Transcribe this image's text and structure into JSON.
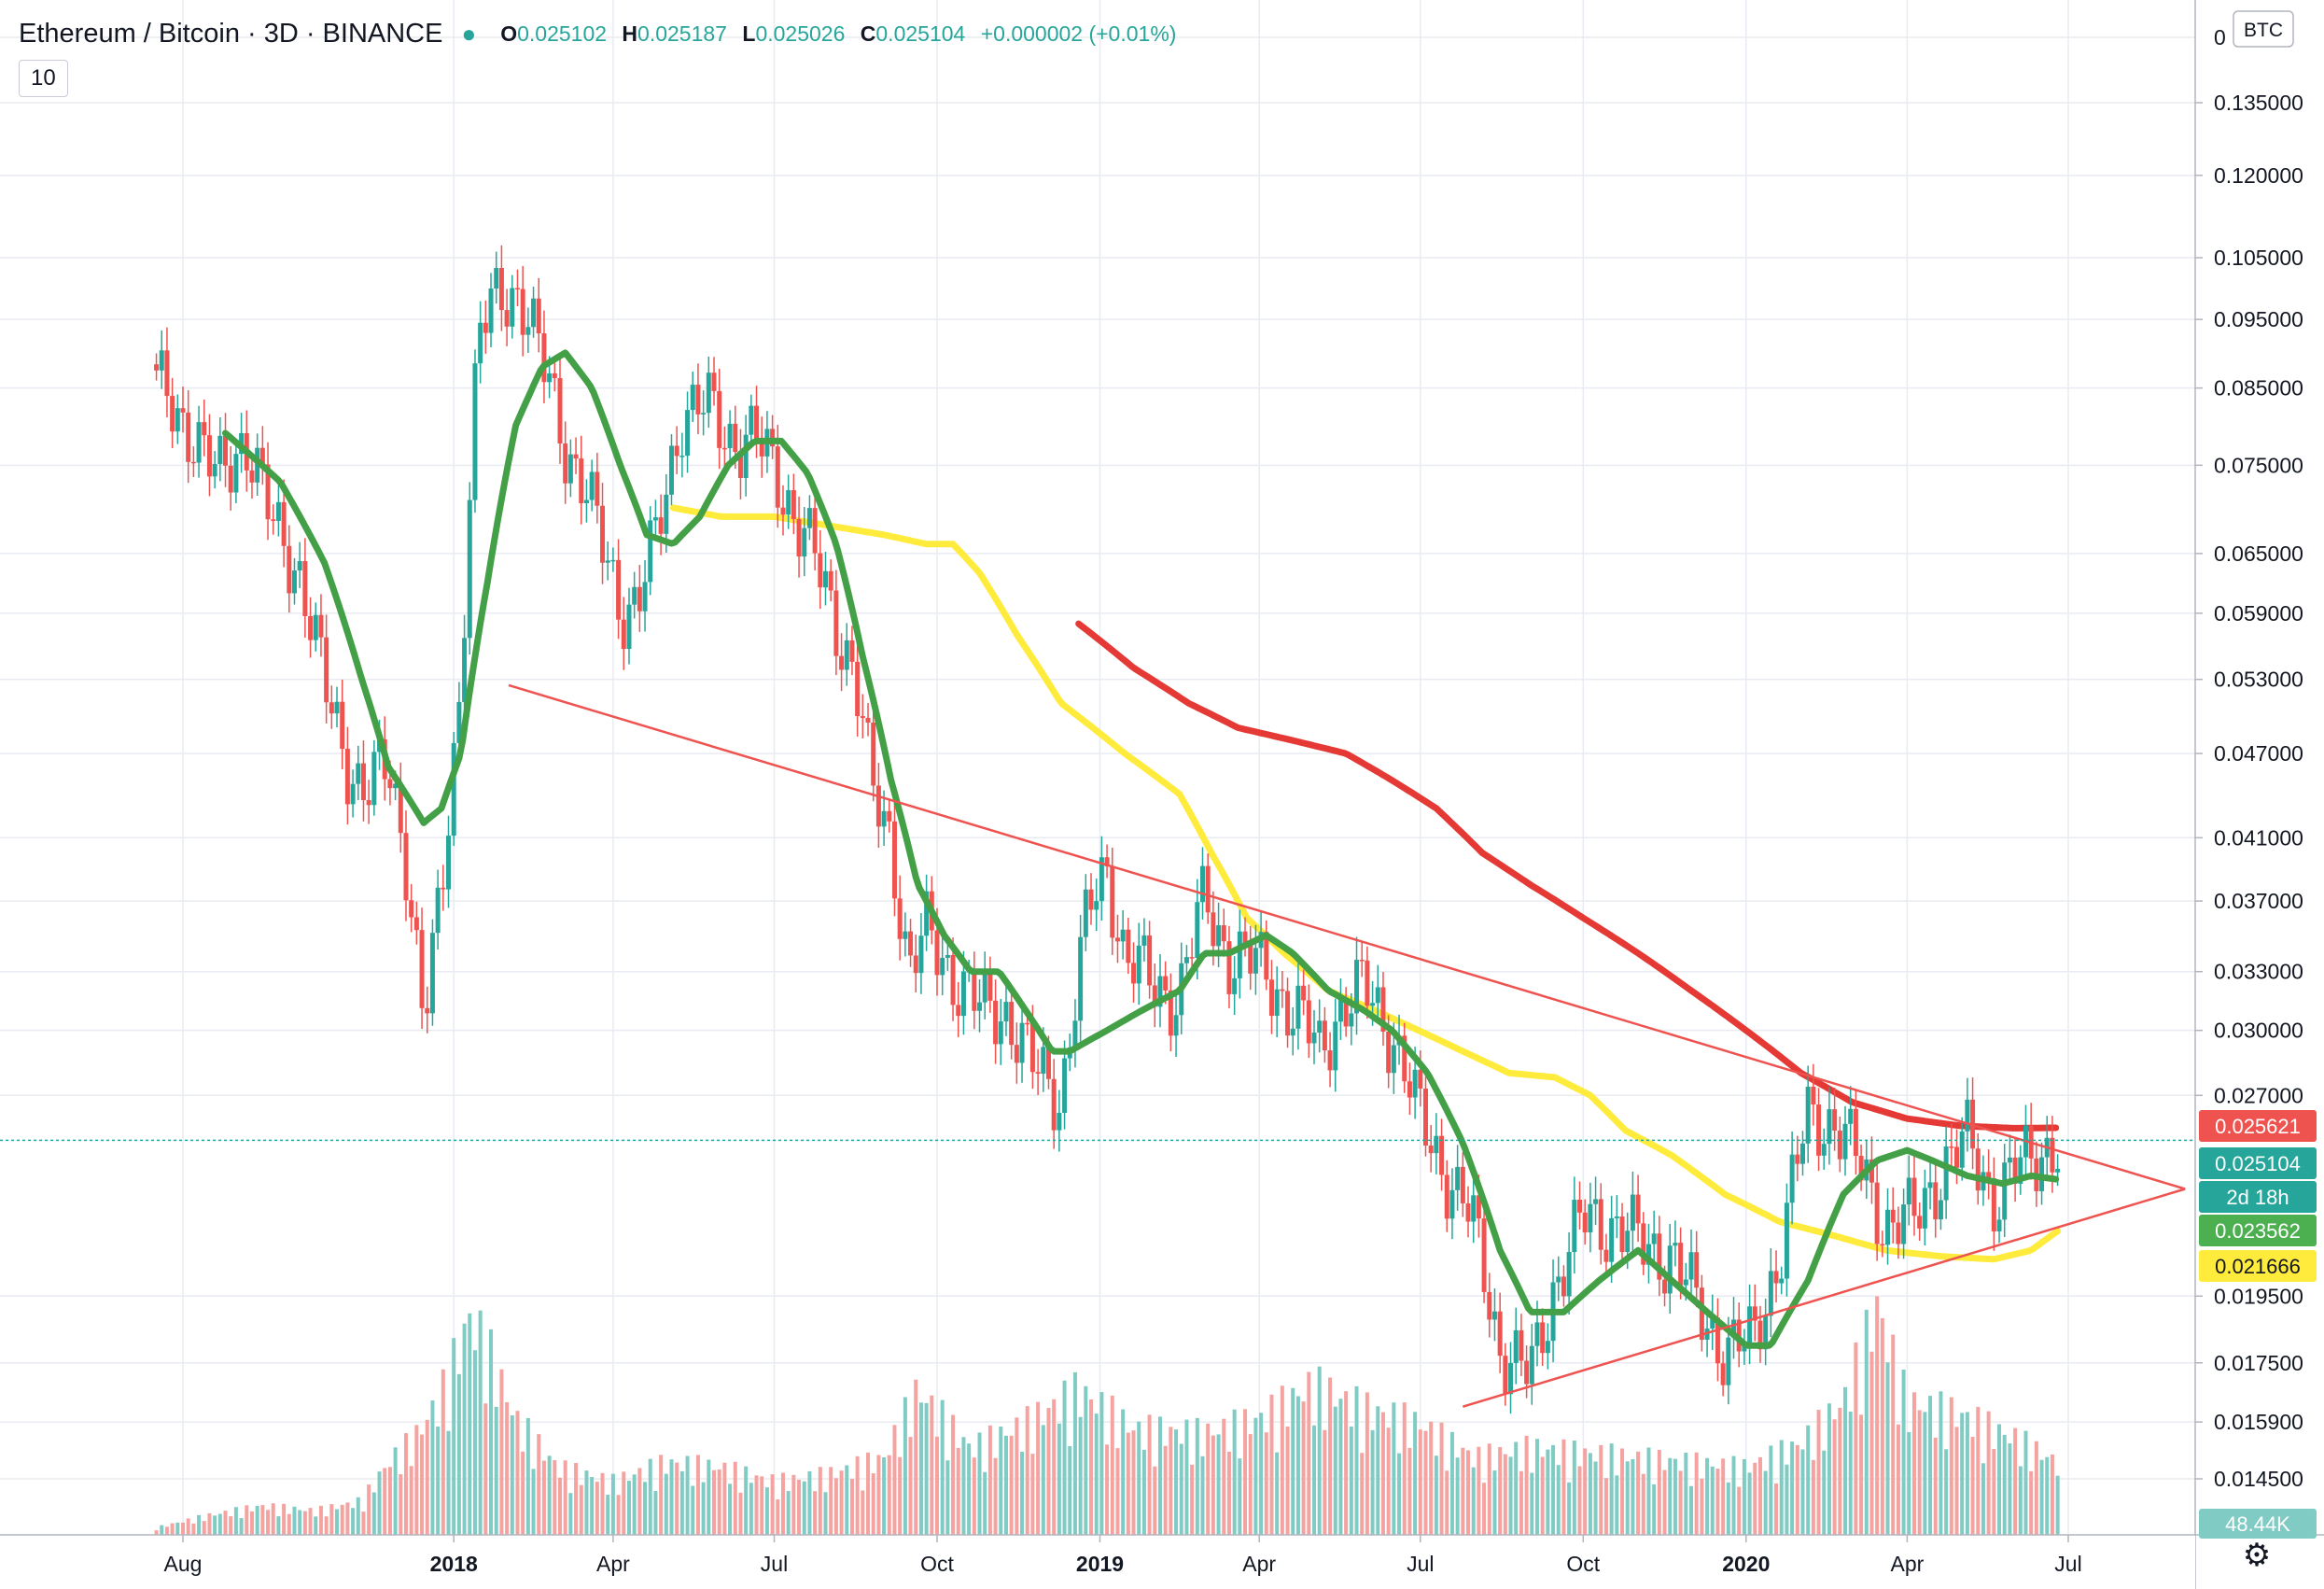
{
  "header": {
    "title": "Ethereum / Bitcoin · 3D · BINANCE",
    "open_label": "O",
    "open": "0.025102",
    "high_label": "H",
    "high": "0.025187",
    "low_label": "L",
    "low": "0.025026",
    "close_label": "C",
    "close": "0.025104",
    "change": "+0.000002 (+0.01%)",
    "status_icon": "live-dot-icon",
    "up_color": "#26a69a"
  },
  "ma_length": "10",
  "settings_icon": "gear-icon",
  "chart_data": {
    "type": "candlestick",
    "scale": "log",
    "quote_currency": "BTC",
    "y_ticks": [
      "0.135000",
      "0.120000",
      "0.105000",
      "0.095000",
      "0.085000",
      "0.075000",
      "0.065000",
      "0.059000",
      "0.053000",
      "0.047000",
      "0.041000",
      "0.037000",
      "0.033000",
      "0.030000",
      "0.027000",
      "0.019500",
      "0.017500",
      "0.015900",
      "0.014500"
    ],
    "top_tick_fragment": "0",
    "x_ticks": [
      {
        "label": "Aug",
        "date": "2017-08-01"
      },
      {
        "label": "2018",
        "date": "2018-01-01",
        "bold": true
      },
      {
        "label": "Apr",
        "date": "2018-04-01"
      },
      {
        "label": "Jul",
        "date": "2018-07-01"
      },
      {
        "label": "Oct",
        "date": "2018-10-01"
      },
      {
        "label": "2019",
        "date": "2019-01-01",
        "bold": true
      },
      {
        "label": "Apr",
        "date": "2019-04-01"
      },
      {
        "label": "Jul",
        "date": "2019-07-01"
      },
      {
        "label": "Oct",
        "date": "2019-10-01"
      },
      {
        "label": "2020",
        "date": "2020-01-01",
        "bold": true
      },
      {
        "label": "Apr",
        "date": "2020-04-01"
      },
      {
        "label": "Jul",
        "date": "2020-07-01"
      }
    ],
    "price_path": [
      [
        "2017-07-17",
        0.085
      ],
      [
        "2017-08-05",
        0.08
      ],
      [
        "2017-08-20",
        0.073
      ],
      [
        "2017-09-05",
        0.079
      ],
      [
        "2017-09-20",
        0.068
      ],
      [
        "2017-10-05",
        0.064
      ],
      [
        "2017-10-20",
        0.052
      ],
      [
        "2017-11-01",
        0.047
      ],
      [
        "2017-11-12",
        0.044
      ],
      [
        "2017-11-25",
        0.046
      ],
      [
        "2017-12-05",
        0.04
      ],
      [
        "2017-12-15",
        0.03
      ],
      [
        "2017-12-25",
        0.037
      ],
      [
        "2018-01-05",
        0.053
      ],
      [
        "2018-01-15",
        0.092
      ],
      [
        "2018-01-27",
        0.099
      ],
      [
        "2018-02-07",
        0.1
      ],
      [
        "2018-02-20",
        0.088
      ],
      [
        "2018-03-05",
        0.078
      ],
      [
        "2018-03-15",
        0.073
      ],
      [
        "2018-03-25",
        0.066
      ],
      [
        "2018-04-05",
        0.06
      ],
      [
        "2018-04-15",
        0.06
      ],
      [
        "2018-04-25",
        0.066
      ],
      [
        "2018-05-10",
        0.082
      ],
      [
        "2018-05-25",
        0.082
      ],
      [
        "2018-06-05",
        0.079
      ],
      [
        "2018-06-20",
        0.078
      ],
      [
        "2018-07-05",
        0.073
      ],
      [
        "2018-07-20",
        0.066
      ],
      [
        "2018-08-01",
        0.06
      ],
      [
        "2018-08-15",
        0.054
      ],
      [
        "2018-08-25",
        0.044
      ],
      [
        "2018-09-05",
        0.041
      ],
      [
        "2018-09-15",
        0.033
      ],
      [
        "2018-09-25",
        0.035
      ],
      [
        "2018-10-10",
        0.033
      ],
      [
        "2018-10-25",
        0.031
      ],
      [
        "2018-11-10",
        0.031
      ],
      [
        "2018-11-25",
        0.028
      ],
      [
        "2018-12-10",
        0.027
      ],
      [
        "2018-12-25",
        0.036
      ],
      [
        "2019-01-05",
        0.039
      ],
      [
        "2019-01-15",
        0.034
      ],
      [
        "2019-02-01",
        0.032
      ],
      [
        "2019-02-15",
        0.032
      ],
      [
        "2019-03-01",
        0.037
      ],
      [
        "2019-03-15",
        0.034
      ],
      [
        "2019-04-05",
        0.033
      ],
      [
        "2019-04-20",
        0.031
      ],
      [
        "2019-05-05",
        0.029
      ],
      [
        "2019-05-15",
        0.031
      ],
      [
        "2019-05-30",
        0.032
      ],
      [
        "2019-06-15",
        0.03
      ],
      [
        "2019-06-30",
        0.026
      ],
      [
        "2019-07-15",
        0.024
      ],
      [
        "2019-07-30",
        0.022
      ],
      [
        "2019-08-15",
        0.018
      ],
      [
        "2019-09-01",
        0.017
      ],
      [
        "2019-09-15",
        0.02
      ],
      [
        "2019-10-01",
        0.022
      ],
      [
        "2019-10-20",
        0.022
      ],
      [
        "2019-11-05",
        0.021
      ],
      [
        "2019-11-20",
        0.021
      ],
      [
        "2019-12-05",
        0.019
      ],
      [
        "2019-12-20",
        0.018
      ],
      [
        "2020-01-05",
        0.018
      ],
      [
        "2020-01-20",
        0.021
      ],
      [
        "2020-02-05",
        0.026
      ],
      [
        "2020-02-20",
        0.026
      ],
      [
        "2020-03-05",
        0.024
      ],
      [
        "2020-03-20",
        0.022
      ],
      [
        "2020-04-05",
        0.022
      ],
      [
        "2020-04-20",
        0.024
      ],
      [
        "2020-05-05",
        0.025
      ],
      [
        "2020-05-20",
        0.023
      ],
      [
        "2020-06-05",
        0.024
      ],
      [
        "2020-06-20",
        0.025
      ]
    ],
    "volume_path": [
      [
        "2017-07-17",
        3
      ],
      [
        "2017-08-15",
        8
      ],
      [
        "2017-09-15",
        12
      ],
      [
        "2017-10-15",
        10
      ],
      [
        "2017-11-10",
        14
      ],
      [
        "2017-11-25",
        30
      ],
      [
        "2017-12-10",
        40
      ],
      [
        "2017-12-25",
        58
      ],
      [
        "2018-01-10",
        90
      ],
      [
        "2018-01-20",
        78
      ],
      [
        "2018-02-05",
        48
      ],
      [
        "2018-03-01",
        28
      ],
      [
        "2018-04-01",
        22
      ],
      [
        "2018-05-01",
        30
      ],
      [
        "2018-06-01",
        28
      ],
      [
        "2018-07-01",
        22
      ],
      [
        "2018-08-01",
        25
      ],
      [
        "2018-09-01",
        32
      ],
      [
        "2018-09-20",
        60
      ],
      [
        "2018-10-20",
        36
      ],
      [
        "2018-11-20",
        46
      ],
      [
        "2018-12-20",
        60
      ],
      [
        "2019-01-20",
        44
      ],
      [
        "2019-03-01",
        42
      ],
      [
        "2019-04-01",
        48
      ],
      [
        "2019-05-01",
        62
      ],
      [
        "2019-06-01",
        52
      ],
      [
        "2019-07-01",
        46
      ],
      [
        "2019-08-01",
        32
      ],
      [
        "2019-09-01",
        36
      ],
      [
        "2019-10-01",
        34
      ],
      [
        "2019-11-01",
        32
      ],
      [
        "2019-12-01",
        30
      ],
      [
        "2020-01-01",
        28
      ],
      [
        "2020-02-01",
        38
      ],
      [
        "2020-02-25",
        55
      ],
      [
        "2020-03-15",
        95
      ],
      [
        "2020-04-01",
        55
      ],
      [
        "2020-05-01",
        50
      ],
      [
        "2020-06-01",
        40
      ],
      [
        "2020-06-25",
        30
      ]
    ],
    "ma_fast_path": [
      [
        "2017-08-25",
        0.079
      ],
      [
        "2017-09-25",
        0.073
      ],
      [
        "2017-10-20",
        0.064
      ],
      [
        "2017-11-10",
        0.053
      ],
      [
        "2017-11-25",
        0.046
      ],
      [
        "2017-12-15",
        0.042
      ],
      [
        "2017-12-25",
        0.043
      ],
      [
        "2018-01-05",
        0.047
      ],
      [
        "2018-01-20",
        0.062
      ],
      [
        "2018-02-05",
        0.08
      ],
      [
        "2018-02-20",
        0.088
      ],
      [
        "2018-03-05",
        0.09
      ],
      [
        "2018-03-20",
        0.085
      ],
      [
        "2018-04-05",
        0.075
      ],
      [
        "2018-04-20",
        0.067
      ],
      [
        "2018-05-05",
        0.066
      ],
      [
        "2018-05-20",
        0.069
      ],
      [
        "2018-06-05",
        0.075
      ],
      [
        "2018-06-20",
        0.078
      ],
      [
        "2018-07-05",
        0.078
      ],
      [
        "2018-07-20",
        0.074
      ],
      [
        "2018-08-05",
        0.066
      ],
      [
        "2018-08-20",
        0.055
      ],
      [
        "2018-09-05",
        0.045
      ],
      [
        "2018-09-20",
        0.038
      ],
      [
        "2018-10-05",
        0.035
      ],
      [
        "2018-10-20",
        0.033
      ],
      [
        "2018-11-05",
        0.033
      ],
      [
        "2018-11-20",
        0.031
      ],
      [
        "2018-12-05",
        0.029
      ],
      [
        "2018-12-15",
        0.029
      ],
      [
        "2019-01-05",
        0.03
      ],
      [
        "2019-01-25",
        0.031
      ],
      [
        "2019-02-15",
        0.032
      ],
      [
        "2019-03-01",
        0.034
      ],
      [
        "2019-03-15",
        0.034
      ],
      [
        "2019-04-05",
        0.035
      ],
      [
        "2019-04-20",
        0.034
      ],
      [
        "2019-05-10",
        0.032
      ],
      [
        "2019-05-30",
        0.031
      ],
      [
        "2019-06-15",
        0.03
      ],
      [
        "2019-07-05",
        0.028
      ],
      [
        "2019-07-25",
        0.025
      ],
      [
        "2019-08-15",
        0.021
      ],
      [
        "2019-09-01",
        0.019
      ],
      [
        "2019-09-20",
        0.019
      ],
      [
        "2019-10-10",
        0.02
      ],
      [
        "2019-11-01",
        0.021
      ],
      [
        "2019-11-20",
        0.02
      ],
      [
        "2019-12-10",
        0.019
      ],
      [
        "2020-01-01",
        0.018
      ],
      [
        "2020-01-15",
        0.018
      ],
      [
        "2020-02-05",
        0.02
      ],
      [
        "2020-02-25",
        0.023
      ],
      [
        "2020-03-15",
        0.0243
      ],
      [
        "2020-04-01",
        0.0247
      ],
      [
        "2020-04-15",
        0.0243
      ],
      [
        "2020-05-05",
        0.0237
      ],
      [
        "2020-05-25",
        0.0234
      ],
      [
        "2020-06-10",
        0.0237
      ],
      [
        "2020-06-25",
        0.02356
      ]
    ],
    "ma_mid_path": [
      [
        "2018-05-05",
        0.07
      ],
      [
        "2018-06-01",
        0.069
      ],
      [
        "2018-07-01",
        0.069
      ],
      [
        "2018-08-01",
        0.068
      ],
      [
        "2018-09-01",
        0.067
      ],
      [
        "2018-09-25",
        0.066
      ],
      [
        "2018-10-10",
        0.066
      ],
      [
        "2018-10-25",
        0.063
      ],
      [
        "2018-11-15",
        0.057
      ],
      [
        "2018-12-10",
        0.051
      ],
      [
        "2019-01-15",
        0.047
      ],
      [
        "2019-02-15",
        0.044
      ],
      [
        "2019-03-05",
        0.04
      ],
      [
        "2019-03-25",
        0.036
      ],
      [
        "2019-04-15",
        0.034
      ],
      [
        "2019-05-10",
        0.032
      ],
      [
        "2019-06-05",
        0.031
      ],
      [
        "2019-06-30",
        0.03
      ],
      [
        "2019-07-25",
        0.029
      ],
      [
        "2019-08-20",
        0.028
      ],
      [
        "2019-09-15",
        0.0278
      ],
      [
        "2019-10-05",
        0.027
      ],
      [
        "2019-10-25",
        0.0255
      ],
      [
        "2019-11-20",
        0.0245
      ],
      [
        "2019-12-20",
        0.023
      ],
      [
        "2020-01-20",
        0.022
      ],
      [
        "2020-02-20",
        0.0215
      ],
      [
        "2020-03-20",
        0.021
      ],
      [
        "2020-04-20",
        0.0208
      ],
      [
        "2020-05-20",
        0.0207
      ],
      [
        "2020-06-10",
        0.021
      ],
      [
        "2020-06-25",
        0.02167
      ]
    ],
    "ma_slow_path": [
      [
        "2018-12-20",
        0.058
      ],
      [
        "2019-01-20",
        0.054
      ],
      [
        "2019-02-20",
        0.051
      ],
      [
        "2019-03-20",
        0.049
      ],
      [
        "2019-04-20",
        0.048
      ],
      [
        "2019-05-20",
        0.047
      ],
      [
        "2019-06-15",
        0.045
      ],
      [
        "2019-07-10",
        0.043
      ],
      [
        "2019-08-05",
        0.04
      ],
      [
        "2019-09-01",
        0.038
      ],
      [
        "2019-10-01",
        0.036
      ],
      [
        "2019-11-01",
        0.034
      ],
      [
        "2019-12-01",
        0.032
      ],
      [
        "2020-01-01",
        0.03
      ],
      [
        "2020-02-01",
        0.028
      ],
      [
        "2020-03-01",
        0.0267
      ],
      [
        "2020-04-01",
        0.026
      ],
      [
        "2020-05-01",
        0.0257
      ],
      [
        "2020-06-01",
        0.0256
      ],
      [
        "2020-06-25",
        0.02562
      ]
    ],
    "trendlines": [
      {
        "name": "upper-trendline",
        "from": [
          "2018-02-01",
          0.0525
        ],
        "to": [
          "2020-09-05",
          0.0232
        ]
      },
      {
        "name": "lower-trendline",
        "from": [
          "2019-07-25",
          0.0163
        ],
        "to": [
          "2020-09-05",
          0.0232
        ]
      }
    ],
    "price_labels": [
      {
        "text": "0.025621",
        "value": 0.025621,
        "color": "#ef5350"
      },
      {
        "text": "0.025104",
        "value": 0.025104,
        "color": "#26a69a"
      },
      {
        "text": "2d 18h",
        "value": 0.0241,
        "color": "#26a69a"
      },
      {
        "text": "0.023562",
        "value": 0.023562,
        "color": "#4caf50"
      },
      {
        "text": "0.021666",
        "value": 0.021666,
        "color": "#ffeb3b",
        "text_color": "#131722"
      }
    ],
    "volume_label": "48.44K",
    "current_price": 0.025104,
    "colors": {
      "up": "#26a69a",
      "down": "#ef5350",
      "ma_fast": "#43a047",
      "ma_mid": "#ffeb3b",
      "ma_slow": "#e53935",
      "trendline": "#ef5350",
      "grid": "#e8ebf1"
    }
  }
}
